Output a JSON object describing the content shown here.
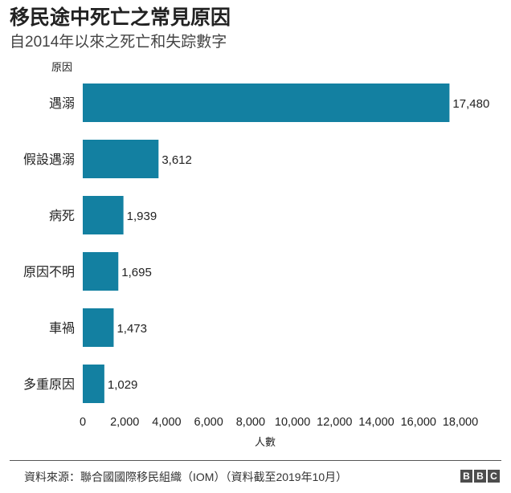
{
  "header": {
    "title": "移民途中死亡之常見原因",
    "subtitle": "自2014年以來之死亡和失踪數字"
  },
  "colors": {
    "bar": "#1380A1",
    "text": "#222222",
    "footer_rule": "#555555",
    "logo_block": "#4d4d4d"
  },
  "chart_data": {
    "type": "bar",
    "orientation": "horizontal",
    "title": "移民途中死亡之常見原因",
    "subtitle": "自2014年以來之死亡和失踪數字",
    "ylabel": "原因",
    "xlabel": "人數",
    "categories": [
      "遇溺",
      "假設遇溺",
      "病死",
      "原因不明",
      "車禍",
      "多重原因"
    ],
    "values": [
      17480,
      3612,
      1939,
      1695,
      1473,
      1029
    ],
    "value_labels": [
      "17,480",
      "3,612",
      "1,939",
      "1,695",
      "1,473",
      "1,029"
    ],
    "xlim": [
      0,
      18000
    ],
    "xticks": [
      0,
      2000,
      4000,
      6000,
      8000,
      10000,
      12000,
      14000,
      16000,
      18000
    ],
    "xtick_labels": [
      "0",
      "2,000",
      "4,000",
      "6,000",
      "8,000",
      "10,000",
      "12,000",
      "14,000",
      "16,000",
      "18,000"
    ],
    "grid": false,
    "legend": "none"
  },
  "footer": {
    "source": "資料來源：聯合國國際移民組織（IOM）（資料截至2019年10月）",
    "logo_letters": [
      "B",
      "B",
      "C"
    ]
  }
}
